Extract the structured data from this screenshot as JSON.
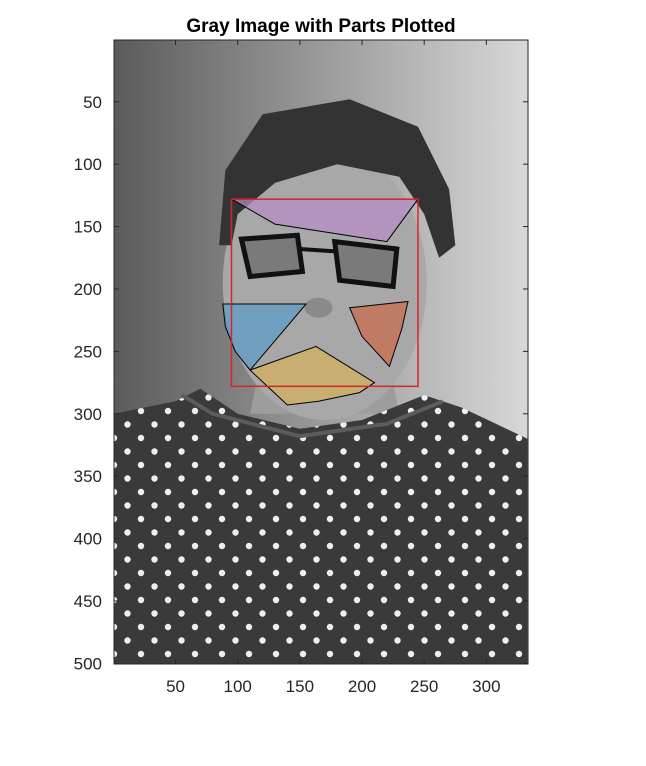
{
  "chart_data": {
    "type": "image-overlay",
    "title": "Gray Image with Parts Plotted",
    "xlabel": "",
    "ylabel": "",
    "xlim": [
      0.5,
      333.5
    ],
    "ylim": [
      0.5,
      500.5
    ],
    "y_reversed": true,
    "xticks": [
      50,
      100,
      150,
      200,
      250,
      300
    ],
    "yticks": [
      50,
      100,
      150,
      200,
      250,
      300,
      350,
      400,
      450,
      500
    ],
    "image": {
      "description_source": "grayscale portrait photograph",
      "shirt_top": [
        [
          0,
          300
        ],
        [
          50,
          290
        ],
        [
          70,
          280
        ],
        [
          100,
          300
        ],
        [
          150,
          312
        ],
        [
          200,
          305
        ],
        [
          250,
          285
        ],
        [
          280,
          295
        ],
        [
          333,
          320
        ]
      ],
      "hair_outline": [
        [
          85,
          165
        ],
        [
          90,
          105
        ],
        [
          120,
          60
        ],
        [
          190,
          48
        ],
        [
          245,
          70
        ],
        [
          270,
          120
        ],
        [
          275,
          165
        ],
        [
          262,
          175
        ],
        [
          250,
          140
        ],
        [
          230,
          110
        ],
        [
          180,
          100
        ],
        [
          130,
          115
        ],
        [
          100,
          140
        ],
        [
          95,
          165
        ]
      ],
      "face_ellipse": {
        "cx": 170,
        "cy": 195,
        "rx": 82,
        "ry": 110
      },
      "colors": {
        "dark": "#333333",
        "mid": "#8c8c8c",
        "light": "#d0d0d0",
        "dot": "#f2f2f2"
      }
    },
    "face_box": {
      "x": [
        95,
        245
      ],
      "y": [
        128,
        278
      ],
      "color": "#d62728"
    },
    "parts": [
      {
        "name": "eyebrows",
        "color": "#b58cc6",
        "points": [
          [
            95,
            128
          ],
          [
            245,
            128
          ],
          [
            220,
            162
          ],
          [
            130,
            148
          ]
        ]
      },
      {
        "name": "left-cheek",
        "color": "#5a9bc9",
        "points": [
          [
            88,
            212
          ],
          [
            155,
            212
          ],
          [
            110,
            265
          ],
          [
            98,
            250
          ],
          [
            90,
            230
          ]
        ]
      },
      {
        "name": "right-cheek",
        "color": "#c86a4a",
        "points": [
          [
            190,
            215
          ],
          [
            237,
            210
          ],
          [
            232,
            232
          ],
          [
            222,
            262
          ],
          [
            200,
            238
          ]
        ]
      },
      {
        "name": "mouth",
        "color": "#d4b25c",
        "points": [
          [
            110,
            265
          ],
          [
            163,
            246
          ],
          [
            210,
            275
          ],
          [
            198,
            283
          ],
          [
            165,
            290
          ],
          [
            140,
            293
          ]
        ]
      }
    ]
  }
}
